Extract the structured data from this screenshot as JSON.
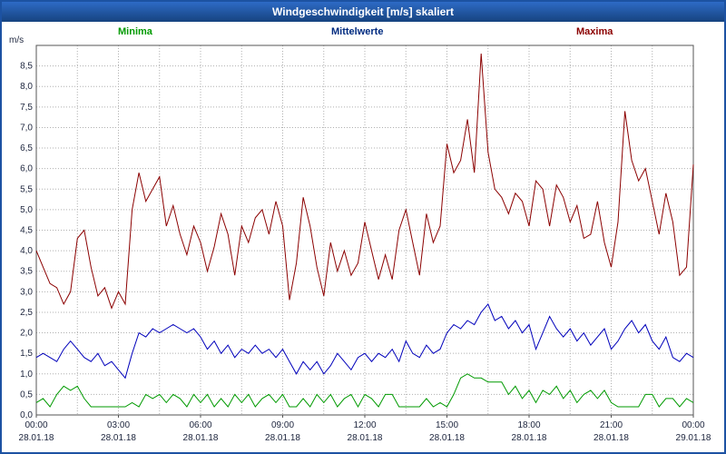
{
  "title": "Windgeschwindigkeit [m/s] skaliert",
  "legend": {
    "minima": "Minima",
    "mittelwerte": "Mittelwerte",
    "maxima": "Maxima"
  },
  "colors": {
    "titlebar": "#1c52a2",
    "grid": "#b0b0b0",
    "plot_border": "#555555",
    "axis_text": "#202840"
  },
  "chart_data": {
    "type": "line",
    "title": "Windgeschwindigkeit [m/s] skaliert",
    "xlabel": "",
    "ylabel": "m/s",
    "ylim": [
      0,
      9
    ],
    "y_tick_step": 0.5,
    "y_tick_max": 8.5,
    "x_range_hours": 24,
    "points_interval_min": 15,
    "grid": {
      "h_step": 0.5,
      "v_step_hours": 1.5,
      "style": "dotted"
    },
    "legend_position": "top",
    "x_ticks": [
      {
        "time": "00:00",
        "date": "28.01.18"
      },
      {
        "time": "03:00",
        "date": "28.01.18"
      },
      {
        "time": "06:00",
        "date": "28.01.18"
      },
      {
        "time": "09:00",
        "date": "28.01.18"
      },
      {
        "time": "12:00",
        "date": "28.01.18"
      },
      {
        "time": "15:00",
        "date": "28.01.18"
      },
      {
        "time": "18:00",
        "date": "28.01.18"
      },
      {
        "time": "21:00",
        "date": "28.01.18"
      },
      {
        "time": "00:00",
        "date": "29.01.18"
      }
    ],
    "series": [
      {
        "name": "Minima",
        "color": "#009a00",
        "values": [
          0.3,
          0.4,
          0.2,
          0.5,
          0.7,
          0.6,
          0.7,
          0.4,
          0.2,
          0.2,
          0.2,
          0.2,
          0.2,
          0.2,
          0.3,
          0.2,
          0.5,
          0.4,
          0.5,
          0.3,
          0.5,
          0.4,
          0.2,
          0.5,
          0.3,
          0.5,
          0.2,
          0.4,
          0.2,
          0.5,
          0.3,
          0.5,
          0.2,
          0.4,
          0.5,
          0.3,
          0.5,
          0.2,
          0.2,
          0.4,
          0.2,
          0.5,
          0.3,
          0.5,
          0.2,
          0.4,
          0.5,
          0.2,
          0.5,
          0.4,
          0.2,
          0.5,
          0.5,
          0.2,
          0.2,
          0.2,
          0.2,
          0.4,
          0.2,
          0.3,
          0.2,
          0.5,
          0.9,
          1.0,
          0.9,
          0.9,
          0.8,
          0.8,
          0.8,
          0.5,
          0.7,
          0.4,
          0.6,
          0.3,
          0.6,
          0.5,
          0.7,
          0.4,
          0.6,
          0.3,
          0.5,
          0.6,
          0.4,
          0.6,
          0.3,
          0.2,
          0.2,
          0.2,
          0.2,
          0.5,
          0.5,
          0.2,
          0.4,
          0.4,
          0.2,
          0.4,
          0.3
        ]
      },
      {
        "name": "Mittelwerte",
        "color": "#0000bb",
        "values": [
          1.4,
          1.5,
          1.4,
          1.3,
          1.6,
          1.8,
          1.6,
          1.4,
          1.3,
          1.5,
          1.2,
          1.3,
          1.1,
          0.9,
          1.5,
          2.0,
          1.9,
          2.1,
          2.0,
          2.1,
          2.2,
          2.1,
          2.0,
          2.1,
          1.9,
          1.6,
          1.8,
          1.5,
          1.7,
          1.4,
          1.6,
          1.5,
          1.7,
          1.5,
          1.6,
          1.4,
          1.6,
          1.3,
          1.0,
          1.3,
          1.1,
          1.3,
          1.0,
          1.2,
          1.5,
          1.3,
          1.1,
          1.4,
          1.5,
          1.3,
          1.5,
          1.4,
          1.6,
          1.3,
          1.8,
          1.5,
          1.4,
          1.7,
          1.5,
          1.6,
          2.0,
          2.2,
          2.1,
          2.3,
          2.2,
          2.5,
          2.7,
          2.3,
          2.4,
          2.1,
          2.3,
          2.0,
          2.2,
          1.6,
          2.0,
          2.4,
          2.1,
          1.9,
          2.1,
          1.8,
          2.0,
          1.7,
          1.9,
          2.1,
          1.6,
          1.8,
          2.1,
          2.3,
          2.0,
          2.2,
          1.8,
          1.6,
          1.9,
          1.4,
          1.3,
          1.5,
          1.4
        ]
      },
      {
        "name": "Maxima",
        "color": "#8b0000",
        "values": [
          4.0,
          3.6,
          3.2,
          3.1,
          2.7,
          3.0,
          4.3,
          4.5,
          3.6,
          2.9,
          3.1,
          2.6,
          3.0,
          2.7,
          5.0,
          5.9,
          5.2,
          5.5,
          5.8,
          4.6,
          5.1,
          4.4,
          3.9,
          4.6,
          4.2,
          3.5,
          4.1,
          4.9,
          4.4,
          3.4,
          4.6,
          4.2,
          4.8,
          5.0,
          4.4,
          5.2,
          4.6,
          2.8,
          3.7,
          5.3,
          4.6,
          3.6,
          2.9,
          4.2,
          3.5,
          4.0,
          3.4,
          3.7,
          4.7,
          4.0,
          3.3,
          3.9,
          3.3,
          4.5,
          5.0,
          4.2,
          3.4,
          4.9,
          4.2,
          4.6,
          6.6,
          5.9,
          6.2,
          7.2,
          5.9,
          8.8,
          6.4,
          5.5,
          5.3,
          4.9,
          5.4,
          5.2,
          4.6,
          5.7,
          5.5,
          4.6,
          5.6,
          5.3,
          4.7,
          5.1,
          4.3,
          4.4,
          5.2,
          4.2,
          3.6,
          4.7,
          7.4,
          6.2,
          5.7,
          6.0,
          5.2,
          4.4,
          5.4,
          4.7,
          3.4,
          3.6,
          6.1
        ]
      }
    ]
  }
}
